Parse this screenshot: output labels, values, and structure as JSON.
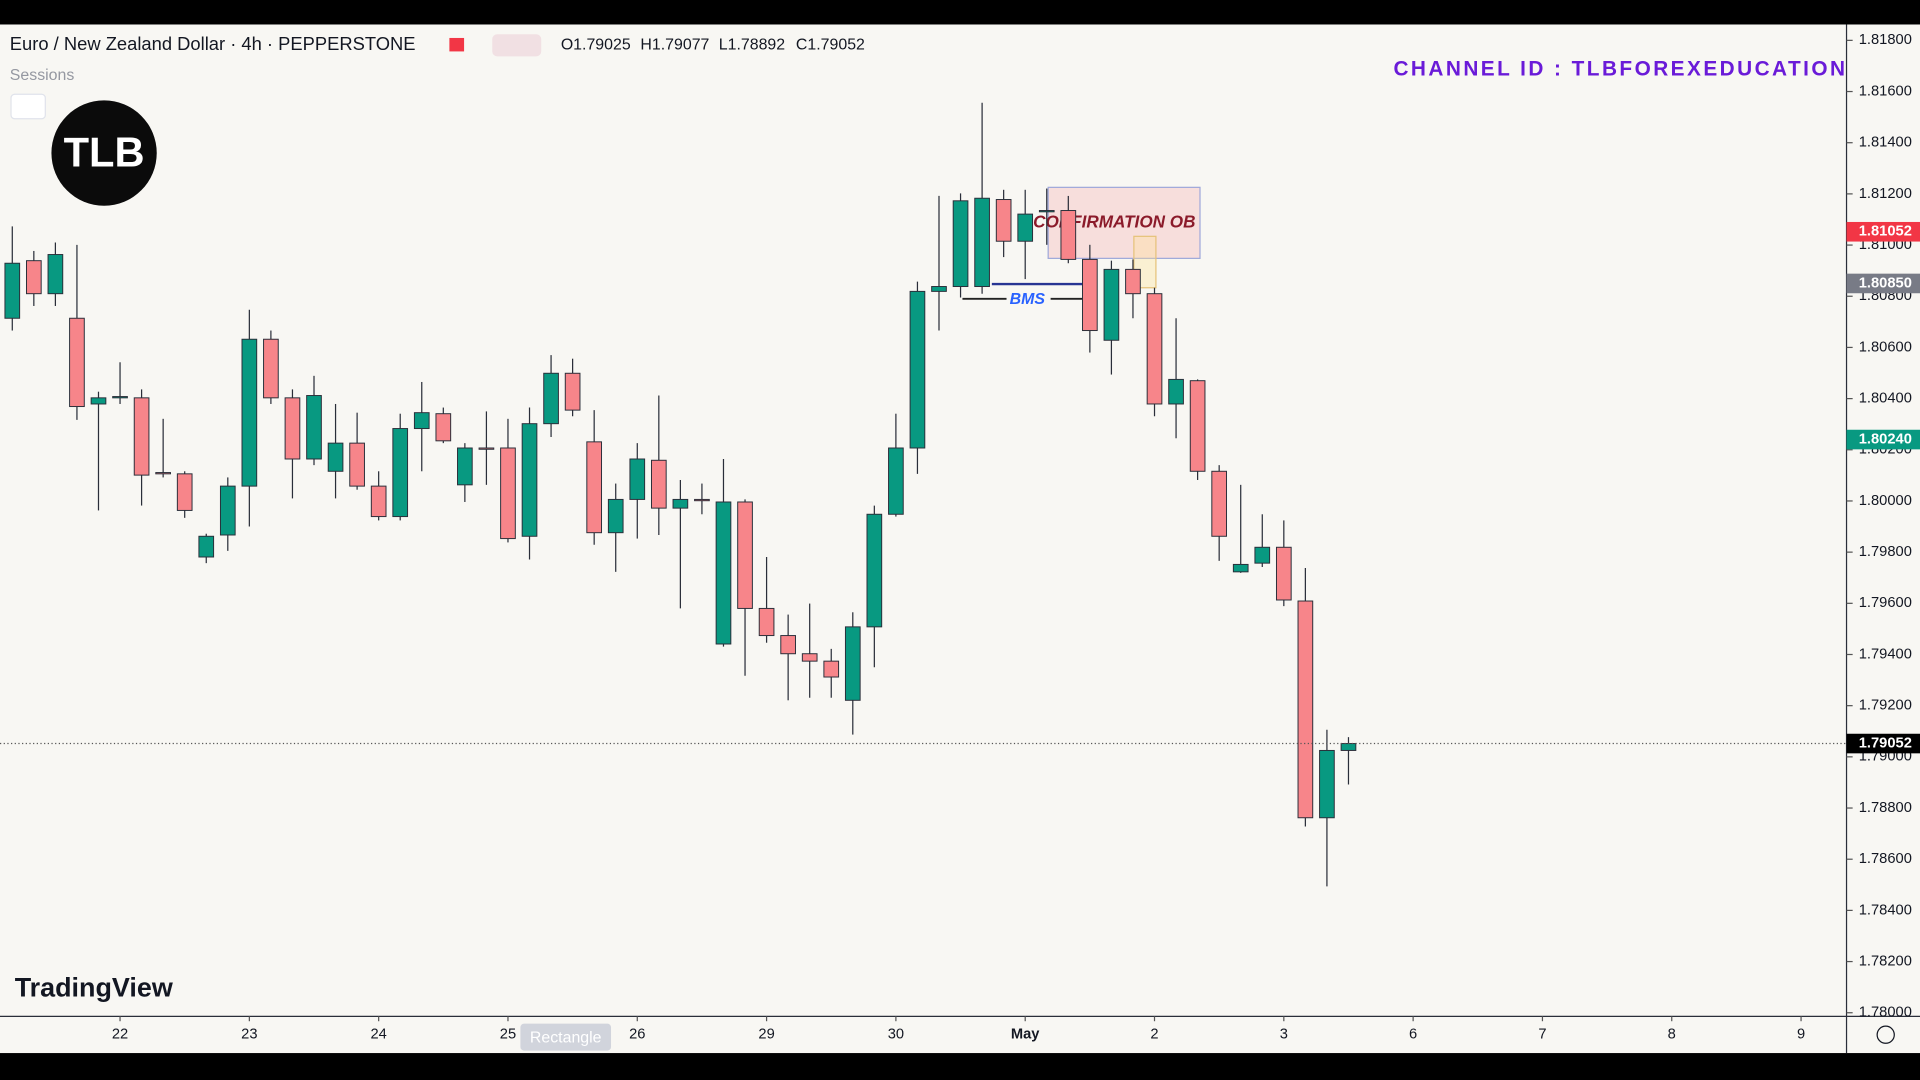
{
  "chart_data": {
    "type": "candlestick",
    "title": "Euro / New Zealand Dollar · 4h · PEPPERSTONE",
    "ohlc_labels": [
      "O1.79025",
      "H1.79077",
      "L1.78892",
      "C1.79052"
    ],
    "sessions": "Sessions",
    "channel": "CHANNEL ID : TLBFOREXEDUCATION",
    "logo": "TLB",
    "brand": "TradingView",
    "tooltip": "Rectangle",
    "annotations": {
      "box": "CONFIRMATION OB",
      "line": "BMS"
    },
    "up_color": "#089981",
    "down_color": "#f7858a",
    "open": [
      1.80714,
      1.80939,
      1.8081,
      1.80714,
      1.80379,
      1.80403,
      1.80403,
      1.80111,
      1.80106,
      1.79781,
      1.79867,
      1.80058,
      1.80632,
      1.80403,
      1.80164,
      1.80116,
      1.80226,
      1.80058,
      1.79939,
      1.80283,
      1.80341,
      1.80063,
      1.80207,
      1.80207,
      1.79862,
      1.80302,
      1.80499,
      1.80231,
      1.79876,
      1.80006,
      1.80159,
      1.79972,
      1.80006,
      1.79441,
      1.79996,
      1.7958,
      1.79474,
      1.79403,
      1.79374,
      1.79221,
      1.79508,
      1.79948,
      1.80207,
      1.80819,
      1.80838,
      1.80838,
      1.81178,
      1.81015,
      1.8113,
      1.81135,
      1.80944,
      1.80628,
      1.80905,
      1.8081,
      1.80379,
      1.8047,
      1.80116,
      1.79723,
      1.79757,
      1.79819,
      1.79609,
      1.78762,
      1.79025
    ],
    "high": [
      1.81073,
      1.80977,
      1.8101,
      1.81001,
      1.80427,
      1.80542,
      1.80436,
      1.80321,
      1.80116,
      1.79872,
      1.80092,
      1.80747,
      1.80666,
      1.80436,
      1.80489,
      1.80379,
      1.80345,
      1.80116,
      1.80341,
      1.80465,
      1.80365,
      1.80226,
      1.8035,
      1.80321,
      1.80365,
      1.8057,
      1.80556,
      1.80355,
      1.80068,
      1.80226,
      1.80412,
      1.80082,
      1.80068,
      1.80164,
      1.80006,
      1.79781,
      1.79556,
      1.79599,
      1.79422,
      1.79565,
      1.79982,
      1.80341,
      1.80857,
      1.81192,
      1.81202,
      1.81556,
      1.81216,
      1.81216,
      1.81221,
      1.81192,
      1.81001,
      1.80939,
      1.80944,
      1.80833,
      1.80714,
      1.80475,
      1.8014,
      1.80063,
      1.79948,
      1.79924,
      1.79738,
      1.79106,
      1.79077
    ],
    "low": [
      1.80666,
      1.80762,
      1.80762,
      1.80317,
      1.79963,
      1.80379,
      1.79982,
      1.80092,
      1.79934,
      1.79757,
      1.79805,
      1.799,
      1.80379,
      1.8001,
      1.8014,
      1.8001,
      1.80044,
      1.79924,
      1.79924,
      1.80116,
      1.80226,
      1.79996,
      1.80063,
      1.79838,
      1.79771,
      1.8025,
      1.80331,
      1.79829,
      1.79723,
      1.79853,
      1.79867,
      1.7958,
      1.79948,
      1.79431,
      1.79317,
      1.79446,
      1.79221,
      1.79231,
      1.79231,
      1.79087,
      1.7935,
      1.79939,
      1.80106,
      1.80666,
      1.80795,
      1.8081,
      1.80953,
      1.80867,
      1.81001,
      1.80929,
      1.8058,
      1.80494,
      1.80714,
      1.80331,
      1.80245,
      1.80082,
      1.79766,
      1.79719,
      1.79742,
      1.79589,
      1.78728,
      1.78494,
      1.78892
    ],
    "close": [
      1.80929,
      1.8081,
      1.80963,
      1.80369,
      1.80403,
      1.80408,
      1.80101,
      1.80106,
      1.79963,
      1.79862,
      1.80058,
      1.80632,
      1.80403,
      1.80164,
      1.80412,
      1.80226,
      1.80058,
      1.79939,
      1.80283,
      1.80345,
      1.80235,
      1.80207,
      1.80202,
      1.79853,
      1.80302,
      1.80499,
      1.80355,
      1.79876,
      1.80006,
      1.80164,
      1.79972,
      1.80006,
      1.80001,
      1.79996,
      1.7958,
      1.79474,
      1.79403,
      1.79374,
      1.79312,
      1.79508,
      1.79948,
      1.80207,
      1.80819,
      1.80838,
      1.81173,
      1.81183,
      1.81015,
      1.81121,
      1.81135,
      1.80944,
      1.80666,
      1.80905,
      1.8081,
      1.80379,
      1.80475,
      1.80116,
      1.79862,
      1.79752,
      1.79819,
      1.79613,
      1.78762,
      1.79025,
      1.79052
    ],
    "xlim": [
      -0.57,
      85.11
    ],
    "xticks": [
      {
        "value": 5,
        "label": "22"
      },
      {
        "value": 11,
        "label": "23"
      },
      {
        "value": 17,
        "label": "24"
      },
      {
        "value": 23,
        "label": "25"
      },
      {
        "value": 29,
        "label": "26"
      },
      {
        "value": 35,
        "label": "29"
      },
      {
        "value": 41,
        "label": "30"
      },
      {
        "value": 47,
        "label": "May"
      },
      {
        "value": 53,
        "label": "2"
      },
      {
        "value": 59,
        "label": "3"
      },
      {
        "value": 65,
        "label": "6"
      },
      {
        "value": 71,
        "label": "7"
      },
      {
        "value": 77,
        "label": "8"
      },
      {
        "value": 83,
        "label": "9"
      }
    ],
    "ylim": [
      1.77986,
      1.81862
    ],
    "yticks": [
      {
        "value": 1.78,
        "label": "1.78000"
      },
      {
        "value": 1.782,
        "label": "1.78200"
      },
      {
        "value": 1.784,
        "label": "1.78400"
      },
      {
        "value": 1.786,
        "label": "1.78600"
      },
      {
        "value": 1.788,
        "label": "1.78800"
      },
      {
        "value": 1.79,
        "label": "1.79000"
      },
      {
        "value": 1.792,
        "label": "1.79200"
      },
      {
        "value": 1.794,
        "label": "1.79400"
      },
      {
        "value": 1.796,
        "label": "1.79600"
      },
      {
        "value": 1.798,
        "label": "1.79800"
      },
      {
        "value": 1.8,
        "label": "1.80000"
      },
      {
        "value": 1.802,
        "label": "1.80200"
      },
      {
        "value": 1.804,
        "label": "1.80400"
      },
      {
        "value": 1.806,
        "label": "1.80600"
      },
      {
        "value": 1.808,
        "label": "1.80800"
      },
      {
        "value": 1.81,
        "label": "1.81000"
      },
      {
        "value": 1.812,
        "label": "1.81200"
      },
      {
        "value": 1.814,
        "label": "1.81400"
      },
      {
        "value": 1.816,
        "label": "1.81600"
      },
      {
        "value": 1.818,
        "label": "1.81800"
      }
    ],
    "price_labels": [
      {
        "value": 1.81052,
        "label": "1.81052",
        "color": "#f23645"
      },
      {
        "value": 1.8085,
        "label": "1.80850",
        "color": "#787b86"
      },
      {
        "value": 1.8024,
        "label": "1.80240",
        "color": "#089981"
      },
      {
        "value": 1.79052,
        "label": "1.79052",
        "color": "#000000"
      }
    ],
    "grid": false
  }
}
